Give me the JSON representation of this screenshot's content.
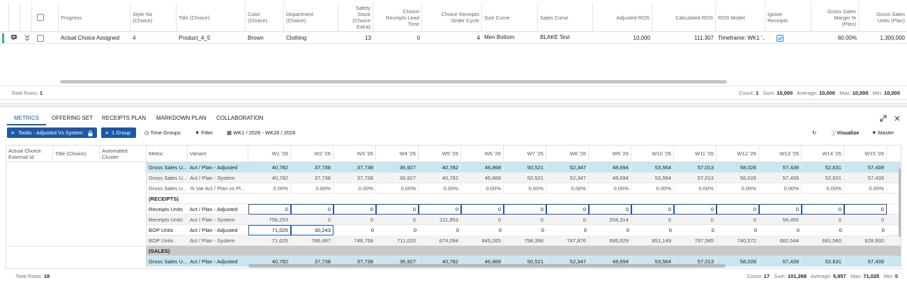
{
  "top_grid": {
    "headers": {
      "progress": "Progress",
      "style_no": "Style No\n(Choice)",
      "title": "Title (Choice)",
      "color": "Color\n(Choice)",
      "department": "Department\n(Choice)",
      "safety_stock": "Safety\nStock\n(Choice\nExtra)",
      "lead_time": "Choice\nReceipts Lead\nTime",
      "order_cycle": "Choice Receipts\nOrder Cycle",
      "size_curve": "Size Curve",
      "sales_curve": "Sales Curve",
      "adjusted_ros": "Adjusted ROS",
      "calculated_ros": "Calculated ROS",
      "ros_model": "ROS Model",
      "ignore_receipts": "Ignore\nReceipts",
      "gs_margin": "Gross Sales\nMargin %\n(Plan)",
      "gs_units": "Gross Sales\nUnits (Plan)"
    },
    "row": {
      "progress": "Actual Choice Assigned",
      "style_no": "4",
      "title": "Product_4_5",
      "color": "Brown",
      "department": "Clothing",
      "safety_stock": "13",
      "lead_time": "0",
      "order_cycle": "4",
      "size_curve": "Men Bottom",
      "sales_curve": "BLAKE Test",
      "adjusted_ros": "10,000",
      "calculated_ros": "111.307",
      "ros_model": "Timeframe: WK1 '...",
      "gs_margin": "60.00%",
      "gs_units": "1,300,000"
    },
    "footer": {
      "total_rows_label": "Total Rows:",
      "total_rows": "1",
      "count_label": "Count:",
      "count": "1",
      "sum_label": "Sum:",
      "sum": "10,000",
      "avg_label": "Average:",
      "avg": "10,000",
      "max_label": "Max:",
      "max": "10,000",
      "min_label": "Min:",
      "min": "10,000"
    }
  },
  "tabs": [
    "METRICS",
    "OFFERING SET",
    "RECEIPTS PLAN",
    "MARKDOWN PLAN",
    "COLLABORATION"
  ],
  "toolbar": {
    "view_button": "Toolio - Adjusted Vs System",
    "group_button": "1 Group",
    "time_groups": "Time Groups",
    "filter": "Filter",
    "date_range": "WK1 / 2026 - WK26 / 2026",
    "visualize": "Visualize",
    "master": "Master"
  },
  "metrics_grid": {
    "left_headers": {
      "external_id": "Actual Choice\nExternal Id",
      "title": "Title (Choice)",
      "cluster": "Automated\nCluster",
      "metric": "Metric",
      "variant": "Variant"
    },
    "weeks": [
      "W1 '26",
      "W2 '26",
      "W3 '26",
      "W4 '26",
      "W5 '26",
      "W6 '26",
      "W7 '26",
      "W8 '26",
      "W9 '26",
      "W10 '26",
      "W11 '26",
      "W12 '26",
      "W13 '26",
      "W14 '26",
      "W15 '26",
      "W"
    ],
    "rows": [
      {
        "metric": "Gross Sales U...",
        "variant": "Act / Plan - Adjusted",
        "values": [
          "40,782",
          "37,738",
          "37,738",
          "36,927",
          "40,782",
          "46,868",
          "50,521",
          "52,347",
          "48,694",
          "53,564",
          "57,013",
          "58,028",
          "57,439",
          "52,631",
          "57,439"
        ]
      },
      {
        "metric": "Gross Sales U...",
        "variant": "Act / Plan - System",
        "values": [
          "40,782",
          "37,738",
          "37,738",
          "36,927",
          "40,782",
          "46,868",
          "50,521",
          "52,347",
          "48,694",
          "53,564",
          "57,013",
          "58,028",
          "57,439",
          "52,631",
          "57,439"
        ]
      },
      {
        "metric": "Gross Sales U...",
        "variant": "% Var Act / Plan vs Pl...",
        "values": [
          "0.00%",
          "0.00%",
          "0.00%",
          "0.00%",
          "0.00%",
          "0.00%",
          "0.00%",
          "0.00%",
          "0.00%",
          "0.00%",
          "0.00%",
          "0.00%",
          "0.00%",
          "0.00%",
          "0.00%"
        ]
      },
      {
        "section": "(RECEIPTS)"
      },
      {
        "metric": "Receipts Units",
        "variant": "Act / Plan - Adjusted",
        "values": [
          "0",
          "0",
          "0",
          "0",
          "0",
          "0",
          "0",
          "0",
          "0",
          "0",
          "0",
          "0",
          "0",
          "0",
          "0"
        ]
      },
      {
        "metric": "Receipts Units",
        "variant": "Act / Plan - System",
        "values": [
          "756,253",
          "0",
          "0",
          "0",
          "211,953",
          "0",
          "0",
          "0",
          "204,314",
          "0",
          "0",
          "0",
          "56,455",
          "0",
          "0"
        ]
      },
      {
        "metric": "BOP Units",
        "variant": "Act / Plan - Adjusted",
        "values": [
          "71,025",
          "30,243",
          "0",
          "0",
          "0",
          "0",
          "0",
          "0",
          "0",
          "0",
          "0",
          "0",
          "0",
          "0",
          "0"
        ]
      },
      {
        "metric": "BOP Units",
        "variant": "Act / Plan - System",
        "values": [
          "71,025",
          "786,497",
          "748,758",
          "711,020",
          "674,094",
          "845,265",
          "798,396",
          "747,876",
          "695,529",
          "851,149",
          "797,585",
          "740,572",
          "682,544",
          "681,560",
          "628,930"
        ]
      },
      {
        "section": "(SALES)"
      },
      {
        "metric": "Gross Sales U...",
        "variant": "Act / Plan - Adjusted",
        "values": [
          "40,782",
          "37,738",
          "37,738",
          "36,927",
          "40,782",
          "46,868",
          "50,521",
          "52,347",
          "48,694",
          "53,564",
          "57,013",
          "58,028",
          "57,439",
          "52,631",
          "57,439"
        ]
      }
    ],
    "footer": {
      "total_rows_label": "Total Rows:",
      "total_rows": "18",
      "count_label": "Count:",
      "count": "17",
      "sum_label": "Sum:",
      "sum": "101,268",
      "avg_label": "Average:",
      "avg": "5,957",
      "max_label": "Max:",
      "max": "71,025",
      "min_label": "Min:",
      "min": "0"
    }
  },
  "colors": {
    "accent": "#1d58a8",
    "row_highlight": "#c7e6f2",
    "section_gray": "#c9c9c9",
    "green_marker": "#3cb371"
  }
}
